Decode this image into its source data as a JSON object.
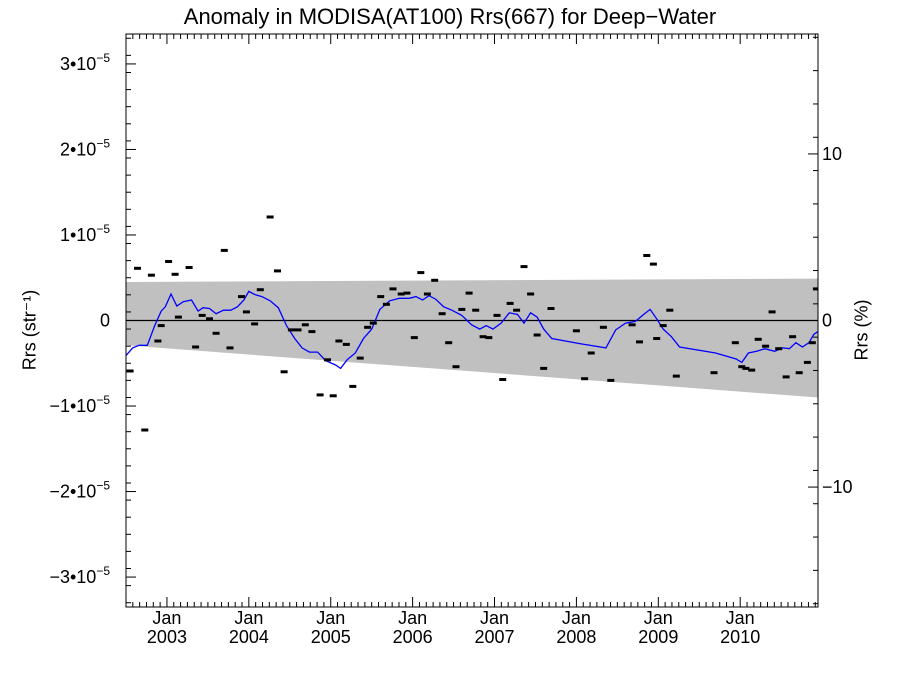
{
  "chart_data": {
    "type": "scatter",
    "title": "Anomaly in MODISA(AT100) Rrs(667) for Deep−Water",
    "ylabel_left": "Rrs (str⁻¹)",
    "ylabel_right": "Rrs (%)",
    "x_range": [
      2002.5,
      2010.95
    ],
    "ylim": [
      -3.35e-05,
      3.35e-05
    ],
    "y_right_lim": [
      -17.2,
      17.2
    ],
    "grid": false,
    "left_ticks": [
      {
        "value": 3e-05,
        "label_mant": "3•10",
        "label_exp": "−5"
      },
      {
        "value": 2e-05,
        "label_mant": "2•10",
        "label_exp": "−5"
      },
      {
        "value": 1e-05,
        "label_mant": "1•10",
        "label_exp": "−5"
      },
      {
        "value": 0,
        "label_mant": "0",
        "label_exp": ""
      },
      {
        "value": -1e-05,
        "label_mant": "−1•10",
        "label_exp": "−5"
      },
      {
        "value": -2e-05,
        "label_mant": "−2•10",
        "label_exp": "−5"
      },
      {
        "value": -3e-05,
        "label_mant": "−3•10",
        "label_exp": "−5"
      }
    ],
    "right_ticks": [
      {
        "value": 10,
        "label": "10"
      },
      {
        "value": 0,
        "label": "0"
      },
      {
        "value": -10,
        "label": "−10"
      }
    ],
    "x_ticks": [
      {
        "value": 2003.0,
        "month": "Jan",
        "year": "2003"
      },
      {
        "value": 2004.0,
        "month": "Jan",
        "year": "2004"
      },
      {
        "value": 2005.0,
        "month": "Jan",
        "year": "2005"
      },
      {
        "value": 2006.0,
        "month": "Jan",
        "year": "2006"
      },
      {
        "value": 2007.0,
        "month": "Jan",
        "year": "2007"
      },
      {
        "value": 2008.0,
        "month": "Jan",
        "year": "2008"
      },
      {
        "value": 2009.0,
        "month": "Jan",
        "year": "2009"
      },
      {
        "value": 2010.0,
        "month": "Jan",
        "year": "2010"
      }
    ],
    "band": {
      "color": "#c0c0c0",
      "upper": [
        [
          2002.5,
          4.5e-06
        ],
        [
          2010.95,
          4.9e-06
        ]
      ],
      "lower": [
        [
          2002.5,
          -2.9e-06
        ],
        [
          2010.95,
          -9e-06
        ]
      ]
    },
    "zero_line": 0,
    "series": [
      {
        "kind": "points",
        "color": "#000000",
        "points": [
          [
            2002.55,
            -5.9e-06
          ],
          [
            2002.64,
            6.1e-06
          ],
          [
            2002.73,
            -1.28e-05
          ],
          [
            2002.81,
            5.3e-06
          ],
          [
            2002.89,
            -2.4e-06
          ],
          [
            2002.93,
            -6e-07
          ],
          [
            2003.02,
            6.9e-06
          ],
          [
            2003.1,
            5.4e-06
          ],
          [
            2003.14,
            4e-07
          ],
          [
            2003.27,
            6.2e-06
          ],
          [
            2003.35,
            -3.1e-06
          ],
          [
            2003.43,
            6e-07
          ],
          [
            2003.52,
            2e-07
          ],
          [
            2003.6,
            -1.5e-06
          ],
          [
            2003.7,
            8.2e-06
          ],
          [
            2003.77,
            -3.2e-06
          ],
          [
            2003.91,
            2.8e-06
          ],
          [
            2003.97,
            1e-06
          ],
          [
            2004.07,
            -4e-07
          ],
          [
            2004.14,
            3.6e-06
          ],
          [
            2004.26,
            1.21e-05
          ],
          [
            2004.35,
            5.8e-06
          ],
          [
            2004.43,
            -6e-06
          ],
          [
            2004.52,
            -1.1e-06
          ],
          [
            2004.6,
            -1.1e-06
          ],
          [
            2004.69,
            -5e-07
          ],
          [
            2004.77,
            -1.3e-06
          ],
          [
            2004.87,
            -8.7e-06
          ],
          [
            2004.96,
            -4.6e-06
          ],
          [
            2005.03,
            -8.8e-06
          ],
          [
            2005.1,
            -2.4e-06
          ],
          [
            2005.19,
            -2.8e-06
          ],
          [
            2005.27,
            -7.7e-06
          ],
          [
            2005.36,
            -4.4e-06
          ],
          [
            2005.45,
            -8e-07
          ],
          [
            2005.52,
            -3e-07
          ],
          [
            2005.61,
            2.8e-06
          ],
          [
            2005.68,
            1.9e-06
          ],
          [
            2005.76,
            3.7e-06
          ],
          [
            2005.86,
            3.1e-06
          ],
          [
            2005.93,
            3.2e-06
          ],
          [
            2006.02,
            -2e-06
          ],
          [
            2006.1,
            5.6e-06
          ],
          [
            2006.18,
            3.1e-06
          ],
          [
            2006.27,
            4.7e-06
          ],
          [
            2006.36,
            8e-07
          ],
          [
            2006.44,
            -2.6e-06
          ],
          [
            2006.53,
            -5.4e-06
          ],
          [
            2006.6,
            1.3e-06
          ],
          [
            2006.69,
            3.2e-06
          ],
          [
            2006.77,
            1.2e-06
          ],
          [
            2006.86,
            -1.9e-06
          ],
          [
            2006.93,
            -2e-06
          ],
          [
            2007.03,
            6e-07
          ],
          [
            2007.1,
            -6.9e-06
          ],
          [
            2007.19,
            2e-06
          ],
          [
            2007.27,
            1.2e-06
          ],
          [
            2007.36,
            6.3e-06
          ],
          [
            2007.44,
            3.1e-06
          ],
          [
            2007.52,
            -1.7e-06
          ],
          [
            2007.6,
            -5.6e-06
          ],
          [
            2007.69,
            1.4e-06
          ],
          [
            2008.0,
            -1.2e-06
          ],
          [
            2008.1,
            -6.8e-06
          ],
          [
            2008.18,
            -3.8e-06
          ],
          [
            2008.33,
            -8e-07
          ],
          [
            2008.42,
            -7e-06
          ],
          [
            2008.68,
            -5e-07
          ],
          [
            2008.77,
            -2.5e-06
          ],
          [
            2008.86,
            7.6e-06
          ],
          [
            2008.94,
            6.6e-06
          ],
          [
            2008.98,
            -2.1e-06
          ],
          [
            2009.06,
            -6e-07
          ],
          [
            2009.14,
            1.2e-06
          ],
          [
            2009.22,
            -6.5e-06
          ],
          [
            2009.68,
            -6.1e-06
          ],
          [
            2009.94,
            -2.6e-06
          ],
          [
            2010.02,
            -5.4e-06
          ],
          [
            2010.07,
            -5.6e-06
          ],
          [
            2010.14,
            -5.8e-06
          ],
          [
            2010.22,
            -2.2e-06
          ],
          [
            2010.31,
            -3e-06
          ],
          [
            2010.39,
            1e-06
          ],
          [
            2010.47,
            -3.3e-06
          ],
          [
            2010.56,
            -6.6e-06
          ],
          [
            2010.64,
            -1.9e-06
          ],
          [
            2010.72,
            -6.1e-06
          ],
          [
            2010.82,
            -4.9e-06
          ],
          [
            2010.88,
            -2.6e-06
          ],
          [
            2010.93,
            3.7e-06
          ]
        ]
      },
      {
        "kind": "line",
        "color": "#0000ff",
        "points": [
          [
            2002.5,
            -4.1e-06
          ],
          [
            2002.58,
            -3.2e-06
          ],
          [
            2002.66,
            -2.9e-06
          ],
          [
            2002.76,
            -2.9e-06
          ],
          [
            2002.85,
            -6e-07
          ],
          [
            2002.93,
            1.1e-06
          ],
          [
            2002.98,
            1.6e-06
          ],
          [
            2003.05,
            3.1e-06
          ],
          [
            2003.12,
            1.7e-06
          ],
          [
            2003.2,
            2.2e-06
          ],
          [
            2003.3,
            2.4e-06
          ],
          [
            2003.38,
            1.1e-06
          ],
          [
            2003.44,
            1.5e-06
          ],
          [
            2003.52,
            1.4e-06
          ],
          [
            2003.6,
            8e-07
          ],
          [
            2003.69,
            1.2e-06
          ],
          [
            2003.78,
            1.2e-06
          ],
          [
            2003.86,
            1.6e-06
          ],
          [
            2003.94,
            2.4e-06
          ],
          [
            2004.0,
            3.4e-06
          ],
          [
            2004.08,
            3e-06
          ],
          [
            2004.16,
            2.8e-06
          ],
          [
            2004.26,
            2.3e-06
          ],
          [
            2004.36,
            1.5e-06
          ],
          [
            2004.46,
            -6e-07
          ],
          [
            2004.56,
            -2.1e-06
          ],
          [
            2004.65,
            -3.2e-06
          ],
          [
            2004.74,
            -3.7e-06
          ],
          [
            2004.84,
            -3.7e-06
          ],
          [
            2004.94,
            -4.7e-06
          ],
          [
            2005.06,
            -5.2e-06
          ],
          [
            2005.12,
            -5.6e-06
          ],
          [
            2005.2,
            -4.6e-06
          ],
          [
            2005.3,
            -3.8e-06
          ],
          [
            2005.4,
            -2.1e-06
          ],
          [
            2005.5,
            -1e-06
          ],
          [
            2005.6,
            1.3e-06
          ],
          [
            2005.72,
            2.3e-06
          ],
          [
            2005.84,
            2.6e-06
          ],
          [
            2005.96,
            2.6e-06
          ],
          [
            2006.04,
            2.8e-06
          ],
          [
            2006.12,
            2.4e-06
          ],
          [
            2006.2,
            2.9e-06
          ],
          [
            2006.28,
            2.5e-06
          ],
          [
            2006.38,
            1.6e-06
          ],
          [
            2006.48,
            1.2e-06
          ],
          [
            2006.6,
            6e-07
          ],
          [
            2006.72,
            -5e-07
          ],
          [
            2006.82,
            -1e-06
          ],
          [
            2006.9,
            -6e-07
          ],
          [
            2006.98,
            -1e-06
          ],
          [
            2007.08,
            -3e-07
          ],
          [
            2007.18,
            9e-07
          ],
          [
            2007.28,
            7e-07
          ],
          [
            2007.36,
            -3e-07
          ],
          [
            2007.44,
            9e-07
          ],
          [
            2007.52,
            4e-07
          ],
          [
            2007.6,
            -1e-06
          ],
          [
            2007.7,
            -2.1e-06
          ],
          [
            2008.04,
            -2.7e-06
          ],
          [
            2008.36,
            -3.2e-06
          ],
          [
            2008.48,
            -1.1e-06
          ],
          [
            2008.6,
            -3e-07
          ],
          [
            2008.72,
            -1e-07
          ],
          [
            2008.82,
            7e-07
          ],
          [
            2008.9,
            1.3e-06
          ],
          [
            2008.98,
            2e-07
          ],
          [
            2009.06,
            -1e-06
          ],
          [
            2009.16,
            -1.9e-06
          ],
          [
            2009.26,
            -3.1e-06
          ],
          [
            2009.7,
            -3.8e-06
          ],
          [
            2009.95,
            -4.5e-06
          ],
          [
            2010.02,
            -4.9e-06
          ],
          [
            2010.1,
            -3.8e-06
          ],
          [
            2010.2,
            -3.6e-06
          ],
          [
            2010.3,
            -3.3e-06
          ],
          [
            2010.42,
            -3.6e-06
          ],
          [
            2010.52,
            -3.2e-06
          ],
          [
            2010.6,
            -3.3e-06
          ],
          [
            2010.68,
            -2.6e-06
          ],
          [
            2010.76,
            -3.1e-06
          ],
          [
            2010.84,
            -2.6e-06
          ],
          [
            2010.9,
            -1.6e-06
          ],
          [
            2010.95,
            -1.3e-06
          ]
        ]
      }
    ]
  }
}
